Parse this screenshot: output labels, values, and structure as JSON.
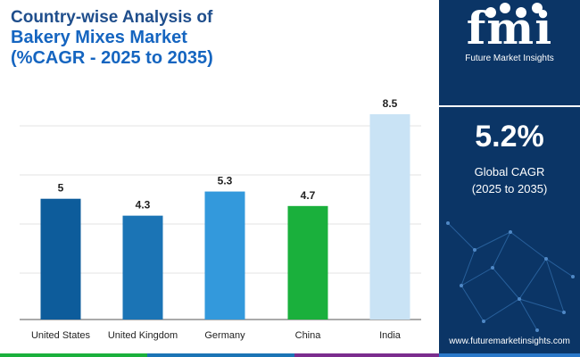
{
  "title": {
    "line1": "Country-wise Analysis of",
    "line2": "Bakery Mixes Market",
    "line3": "(%CAGR - 2025 to 2035)"
  },
  "chart_data": {
    "type": "bar",
    "categories": [
      "United States",
      "United Kingdom",
      "Germany",
      "China",
      "India"
    ],
    "values": [
      5,
      4.3,
      5.3,
      4.7,
      8.5
    ],
    "value_labels": [
      "5",
      "4.3",
      "5.3",
      "4.7",
      "8.5"
    ],
    "colors": [
      "#0d5c9b",
      "#1b74b5",
      "#3399dc",
      "#1ab03c",
      "#c9e3f5"
    ],
    "ylim": [
      0,
      8.5
    ],
    "grid": true,
    "legend": "none"
  },
  "panel": {
    "logo_letters": "fmi",
    "logo_text": "Future Market Insights",
    "cagr_value": "5.2%",
    "cagr_label_line1": "Global CAGR",
    "cagr_label_line2": "(2025 to 2035)",
    "website": "www.futuremarketinsights.com"
  },
  "colors": {
    "panel_bg": "#0b3566",
    "title": "#1565c0",
    "bottom_bar": [
      "#1ab03c",
      "#1b74b5",
      "#7b2d8e",
      "#2a78c9"
    ]
  }
}
